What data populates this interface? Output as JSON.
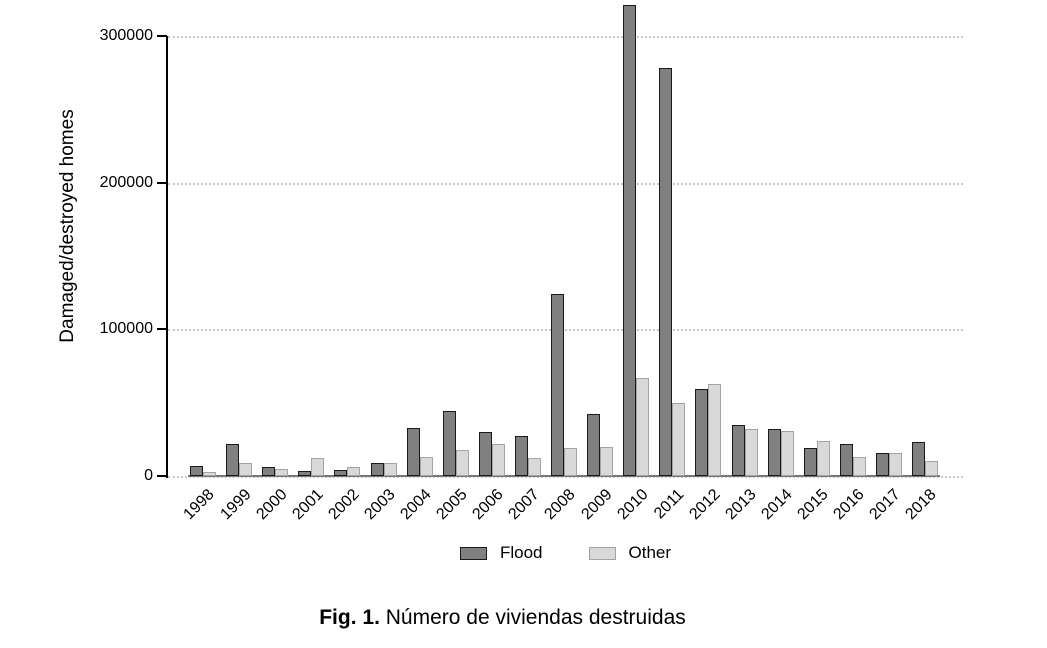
{
  "figure": {
    "caption_prefix": "Fig. 1.",
    "caption_text": " Número de viviendas destruidas"
  },
  "chart_data": {
    "type": "bar",
    "title": "",
    "xlabel": "",
    "ylabel": "Damaged/destroyed homes",
    "categories": [
      "1998",
      "1999",
      "2000",
      "2001",
      "2002",
      "2003",
      "2004",
      "2005",
      "2006",
      "2007",
      "2008",
      "2009",
      "2010",
      "2011",
      "2012",
      "2013",
      "2014",
      "2015",
      "2016",
      "2017",
      "2018"
    ],
    "series": [
      {
        "name": "Flood",
        "color": "#808080",
        "border_color": "#1a1a1a",
        "values": [
          7000,
          22000,
          6000,
          3500,
          4000,
          9000,
          33000,
          44000,
          30000,
          27000,
          124000,
          42000,
          321000,
          278000,
          59000,
          35000,
          32000,
          19000,
          22000,
          16000,
          23000
        ]
      },
      {
        "name": "Other",
        "color": "#d9d9d9",
        "border_color": "#a3a3a3",
        "values": [
          3000,
          9000,
          5000,
          12000,
          6000,
          9000,
          13000,
          18000,
          22000,
          12000,
          19000,
          20000,
          67000,
          50000,
          63000,
          32000,
          31000,
          24000,
          13000,
          16000,
          10000
        ]
      }
    ],
    "yticks": [
      0,
      100000,
      200000,
      300000
    ],
    "ytick_labels": [
      "0",
      "100000",
      "200000",
      "300000"
    ],
    "ylim": [
      0,
      322000
    ],
    "grid": "horizontal-dotted",
    "legend_position": "bottom-center",
    "bar_orientation": "vertical-grouped"
  }
}
